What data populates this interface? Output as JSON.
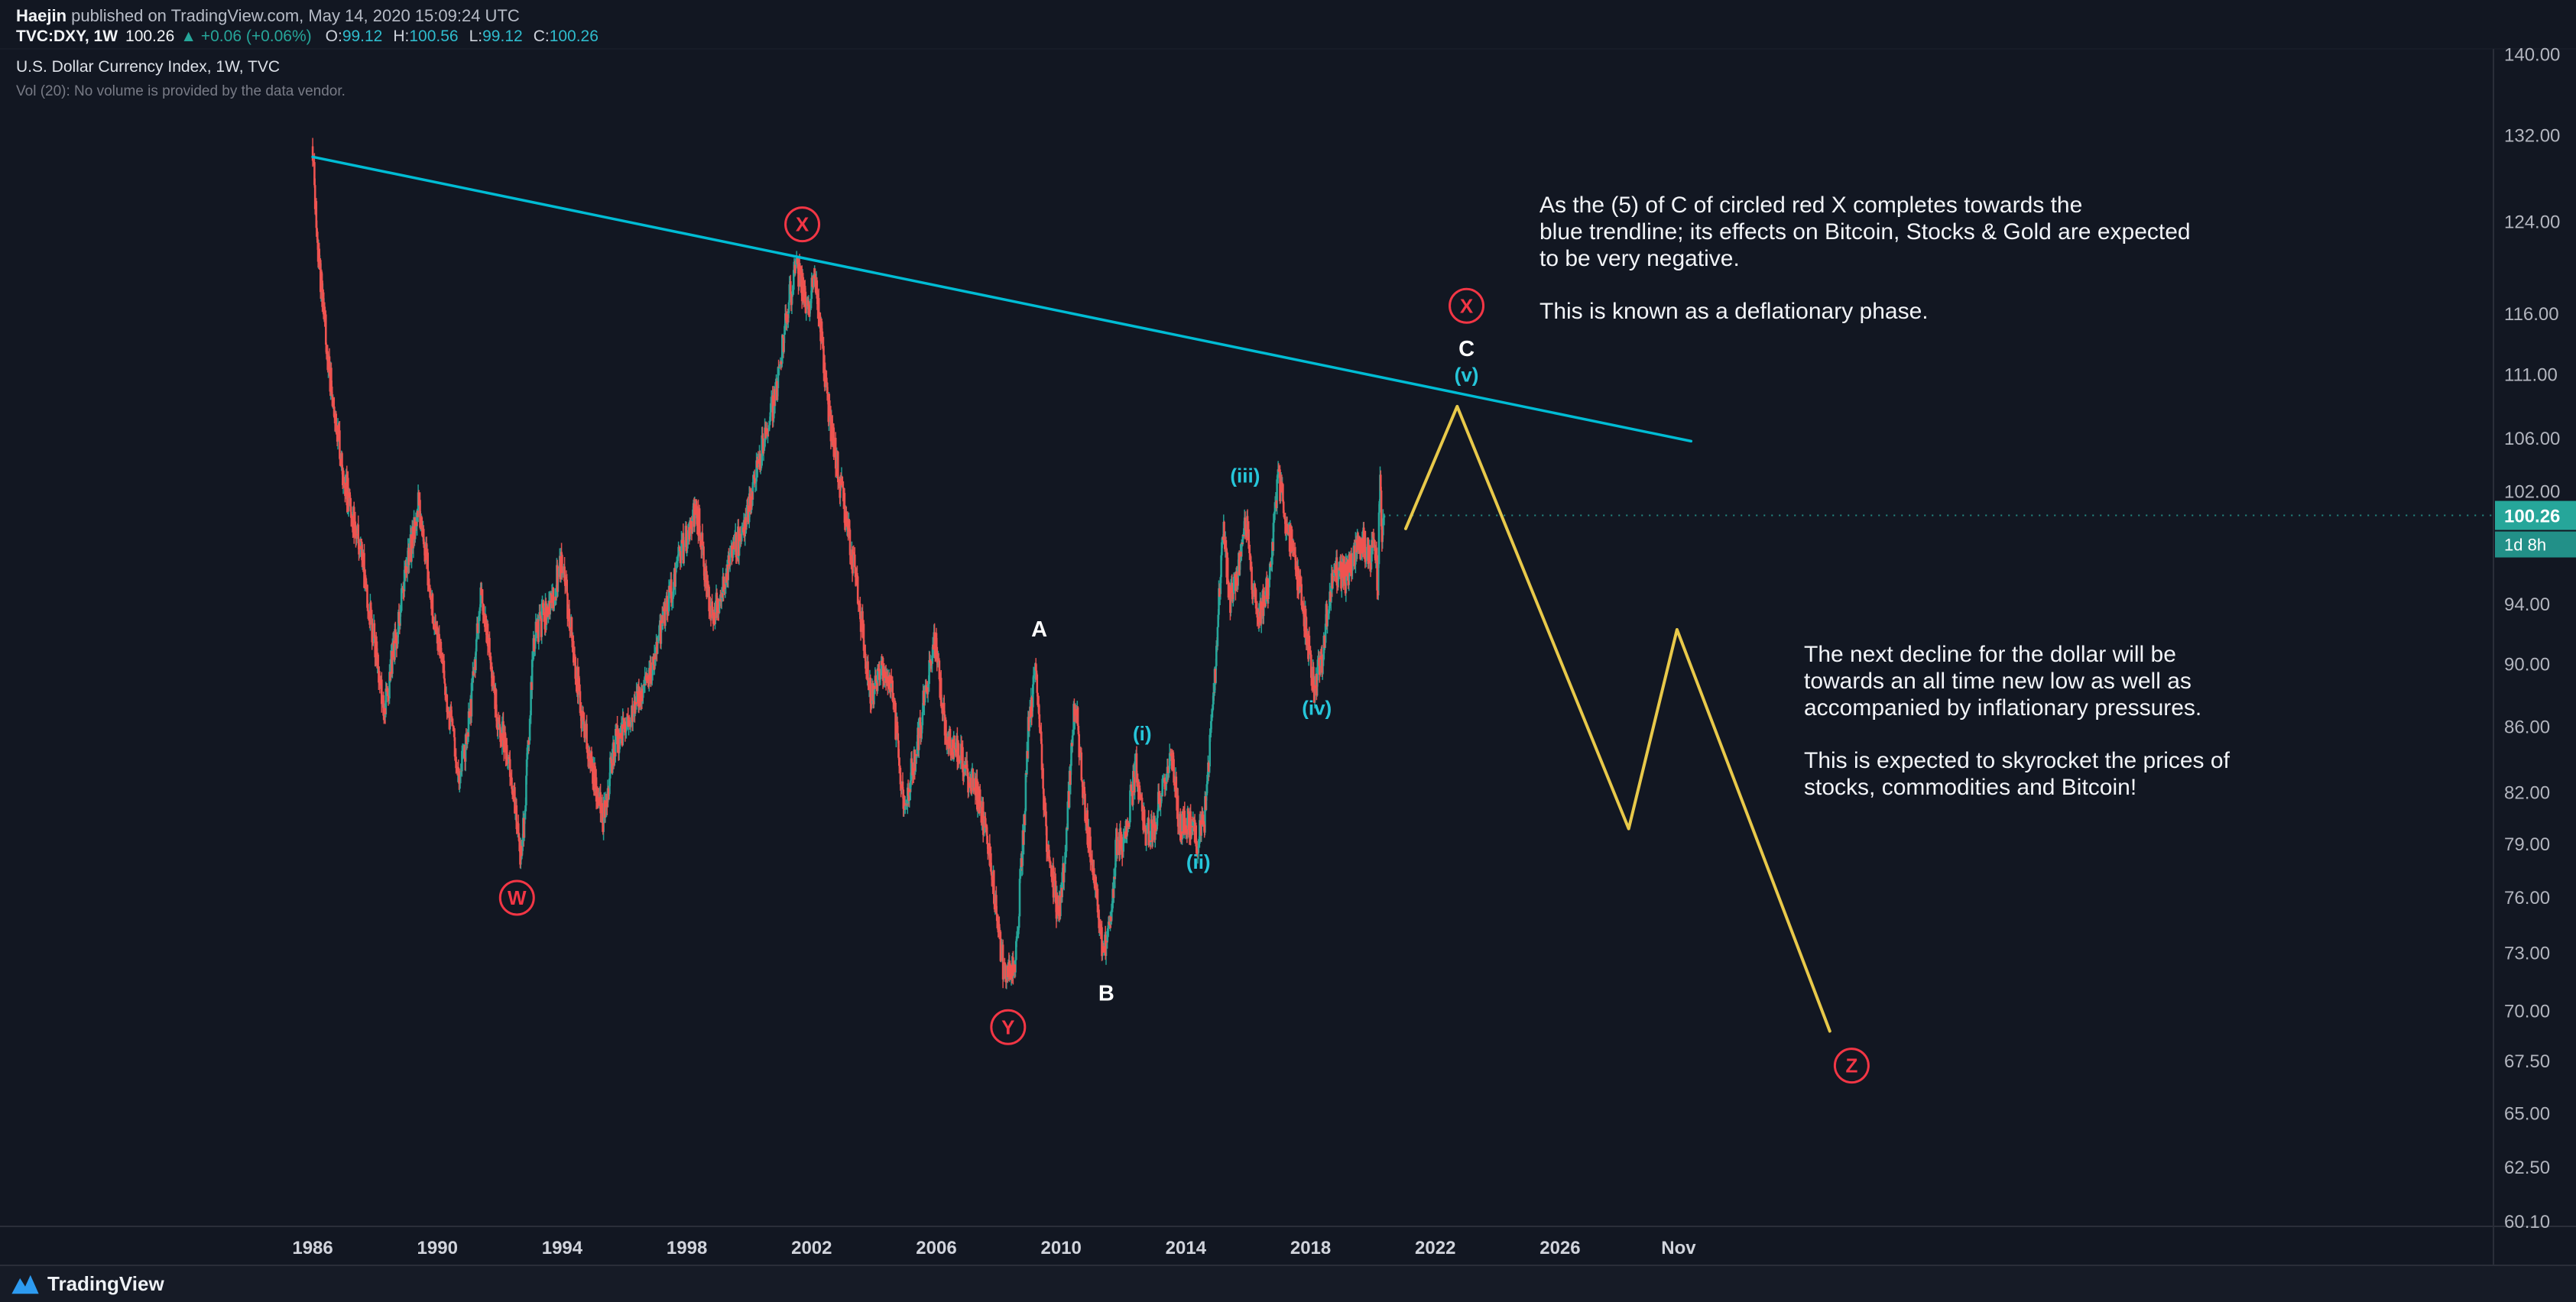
{
  "header": {
    "byline_author": "Haejin",
    "byline_rest": " published on TradingView.com, May 14, 2020 15:09:24 UTC",
    "symbol": "TVC:DXY, 1W",
    "last": "100.26",
    "change": "▲ +0.06 (+0.06%)",
    "ohlc": [
      {
        "label": "O:",
        "value": "99.12"
      },
      {
        "label": "H:",
        "value": "100.56"
      },
      {
        "label": "L:",
        "value": "99.12"
      },
      {
        "label": "C:",
        "value": "100.26"
      }
    ]
  },
  "legend": {
    "title": "U.S. Dollar Currency Index, 1W, TVC",
    "vol": "Vol (20): No volume is provided by the data vendor."
  },
  "notes": [
    {
      "text": "As the (5) of C of circled red X completes towards the\nblue trendline; its effects on Bitcoin, Stocks & Gold are expected\nto be very negative.\n\nThis is known as a deflationary phase."
    },
    {
      "text": "The next decline for the dollar will be\ntowards an all time new low as well as\naccompanied by inflationary pressures.\n\nThis is expected to skyrocket the prices of\nstocks, commodities and Bitcoin!"
    }
  ],
  "footer": {
    "brand": "TradingView"
  },
  "chart_data": {
    "type": "candlestick",
    "symbol": "TVC:DXY",
    "timeframe": "1W",
    "title": "U.S. Dollar Currency Index, 1W, TVC",
    "scale": "log",
    "x_range": [
      1976.39,
      2055.93
    ],
    "y_range": [
      59.9,
      140.5
    ],
    "last_price": 100.26,
    "badges": {
      "price": "100.26",
      "countdown": "1d 8h"
    },
    "price_ticks": [
      140,
      132,
      124,
      116,
      111,
      106,
      102,
      94,
      90,
      86,
      82,
      79,
      76,
      73,
      70,
      67.5,
      65,
      62.5,
      60.1
    ],
    "time_ticks": [
      {
        "label": "1986",
        "t": 1986
      },
      {
        "label": "1990",
        "t": 1990
      },
      {
        "label": "1994",
        "t": 1994
      },
      {
        "label": "1998",
        "t": 1998
      },
      {
        "label": "2002",
        "t": 2002
      },
      {
        "label": "2006",
        "t": 2006
      },
      {
        "label": "2010",
        "t": 2010
      },
      {
        "label": "2014",
        "t": 2014
      },
      {
        "label": "2018",
        "t": 2018
      },
      {
        "label": "2022",
        "t": 2022
      },
      {
        "label": "2026",
        "t": 2026
      },
      {
        "label": "Nov",
        "t": 2029.8
      }
    ],
    "price_path": [
      [
        1986.0,
        131
      ],
      [
        1986.15,
        122
      ],
      [
        1986.5,
        112
      ],
      [
        1987.0,
        103
      ],
      [
        1987.6,
        97
      ],
      [
        1988.3,
        87
      ],
      [
        1988.9,
        95
      ],
      [
        1989.4,
        101
      ],
      [
        1989.9,
        93
      ],
      [
        1990.7,
        83
      ],
      [
        1991.0,
        86
      ],
      [
        1991.4,
        95
      ],
      [
        1991.9,
        87
      ],
      [
        1992.3,
        84
      ],
      [
        1992.7,
        78
      ],
      [
        1993.1,
        92
      ],
      [
        1993.6,
        94
      ],
      [
        1994.0,
        97
      ],
      [
        1994.6,
        87
      ],
      [
        1995.3,
        80.5
      ],
      [
        1995.7,
        85
      ],
      [
        1996.3,
        87
      ],
      [
        1996.9,
        90
      ],
      [
        1997.6,
        96
      ],
      [
        1998.3,
        101
      ],
      [
        1998.8,
        93
      ],
      [
        1999.4,
        97
      ],
      [
        1999.9,
        100
      ],
      [
        2000.4,
        105
      ],
      [
        2000.9,
        110
      ],
      [
        2001.2,
        116
      ],
      [
        2001.5,
        120.5
      ],
      [
        2001.9,
        116
      ],
      [
        2002.1,
        119.5
      ],
      [
        2002.6,
        107
      ],
      [
        2003.1,
        100
      ],
      [
        2003.4,
        96
      ],
      [
        2003.9,
        88
      ],
      [
        2004.3,
        90
      ],
      [
        2004.6,
        88
      ],
      [
        2004.95,
        81
      ],
      [
        2005.4,
        85
      ],
      [
        2005.7,
        89
      ],
      [
        2005.95,
        91.5
      ],
      [
        2006.3,
        86
      ],
      [
        2006.9,
        83.5
      ],
      [
        2007.4,
        81.5
      ],
      [
        2007.8,
        77
      ],
      [
        2008.2,
        71.5
      ],
      [
        2008.55,
        73
      ],
      [
        2008.8,
        80
      ],
      [
        2008.95,
        86
      ],
      [
        2009.2,
        89.5
      ],
      [
        2009.5,
        80
      ],
      [
        2009.9,
        75
      ],
      [
        2010.1,
        78
      ],
      [
        2010.45,
        88
      ],
      [
        2010.7,
        82
      ],
      [
        2010.9,
        79
      ],
      [
        2011.1,
        77
      ],
      [
        2011.35,
        73
      ],
      [
        2011.6,
        75
      ],
      [
        2011.75,
        79
      ],
      [
        2012.0,
        79
      ],
      [
        2012.4,
        83.5
      ],
      [
        2012.7,
        79.5
      ],
      [
        2013.0,
        80
      ],
      [
        2013.3,
        83
      ],
      [
        2013.55,
        84.5
      ],
      [
        2013.8,
        80
      ],
      [
        2014.1,
        80.5
      ],
      [
        2014.35,
        79.3
      ],
      [
        2014.6,
        80.5
      ],
      [
        2014.9,
        88
      ],
      [
        2015.2,
        100
      ],
      [
        2015.4,
        94
      ],
      [
        2015.7,
        96.5
      ],
      [
        2015.95,
        100
      ],
      [
        2016.15,
        95
      ],
      [
        2016.35,
        93
      ],
      [
        2016.7,
        96
      ],
      [
        2016.95,
        103.3
      ],
      [
        2017.2,
        100
      ],
      [
        2017.5,
        97
      ],
      [
        2017.8,
        93
      ],
      [
        2018.1,
        88.5
      ],
      [
        2018.35,
        90
      ],
      [
        2018.6,
        95
      ],
      [
        2018.9,
        96.5
      ],
      [
        2019.1,
        95.8
      ],
      [
        2019.4,
        97.5
      ],
      [
        2019.65,
        98.5
      ],
      [
        2019.9,
        97.3
      ],
      [
        2020.05,
        99
      ],
      [
        2020.15,
        95
      ],
      [
        2020.22,
        102.9
      ],
      [
        2020.3,
        98.5
      ],
      [
        2020.37,
        100.26
      ]
    ],
    "candles": {
      "start": 1986.0,
      "end": 2020.37,
      "step_years": 0.01923
    },
    "trendline": {
      "points": [
        [
          1986.0,
          130.0
        ],
        [
          2030.2,
          105.8
        ]
      ]
    },
    "projection": {
      "points": [
        [
          2021.05,
          99.3
        ],
        [
          2022.7,
          108.5
        ],
        [
          2028.2,
          79.9
        ],
        [
          2029.75,
          92.3
        ],
        [
          2034.65,
          69.0
        ]
      ]
    },
    "wave_labels": [
      {
        "text": "W",
        "t": 1992.55,
        "p": 76.0,
        "style": "circle"
      },
      {
        "text": "X",
        "t": 2001.7,
        "p": 123.8,
        "style": "circle"
      },
      {
        "text": "Y",
        "t": 2008.3,
        "p": 69.2,
        "style": "circle"
      },
      {
        "text": "X",
        "t": 2023.0,
        "p": 116.7,
        "style": "circle"
      },
      {
        "text": "Z",
        "t": 2035.35,
        "p": 67.3,
        "style": "circle"
      },
      {
        "text": "A",
        "t": 2009.3,
        "p": 92.3,
        "style": "white"
      },
      {
        "text": "B",
        "t": 2011.45,
        "p": 70.9,
        "style": "white"
      },
      {
        "text": "C",
        "t": 2023.0,
        "p": 113.1,
        "style": "white"
      },
      {
        "text": "(i)",
        "t": 2012.6,
        "p": 85.6,
        "style": "cyan"
      },
      {
        "text": "(ii)",
        "t": 2014.4,
        "p": 78.0,
        "style": "cyan"
      },
      {
        "text": "(iii)",
        "t": 2015.9,
        "p": 103.2,
        "style": "cyan"
      },
      {
        "text": "(iv)",
        "t": 2018.2,
        "p": 87.2,
        "style": "cyan"
      },
      {
        "text": "(v)",
        "t": 2023.0,
        "p": 111.0,
        "style": "cyan"
      }
    ],
    "colors": {
      "up": "#26a69a",
      "down": "#ef5350",
      "red": "#f23645",
      "cyan": "#26c6da",
      "trendline": "#00bcd4",
      "projection": "#e8c94a",
      "badge": "#26a69a",
      "axis_text": "#b2b5be",
      "time_text": "#d1d4dc",
      "separator": "#2a2e39"
    }
  }
}
